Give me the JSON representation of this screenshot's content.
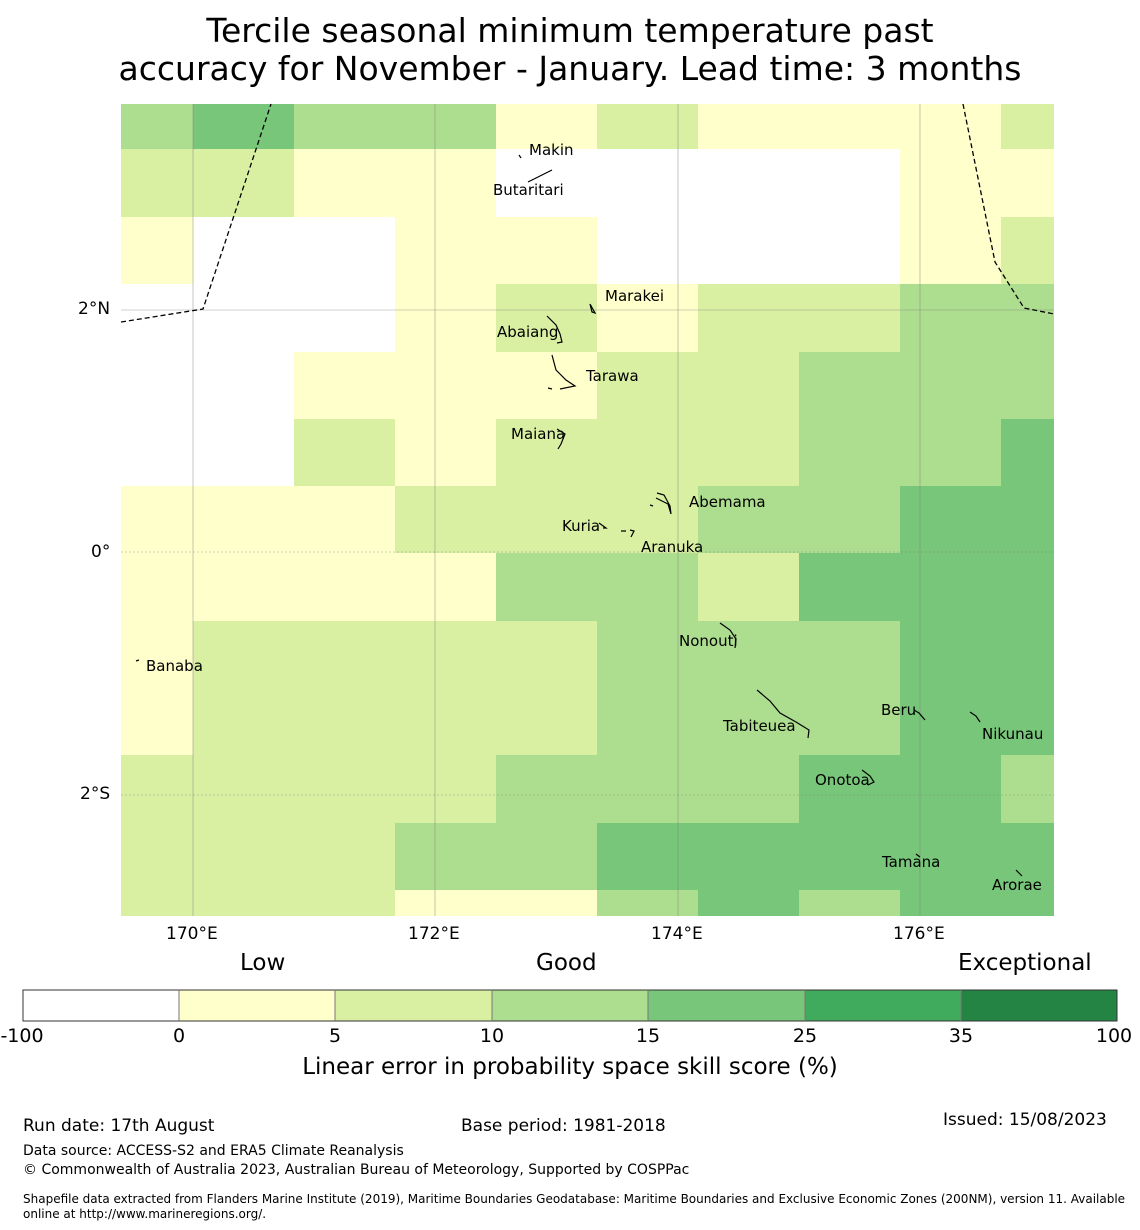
{
  "title_line1": "Tercile seasonal minimum temperature past",
  "title_line2": "accuracy for November - January. Lead time: 3 months",
  "axes": {
    "x_ticks": [
      "170°E",
      "172°E",
      "174°E",
      "176°E"
    ],
    "y_ticks": [
      "2°N",
      "0°",
      "2°S"
    ]
  },
  "islands": [
    {
      "name": "Makin"
    },
    {
      "name": "Butaritari"
    },
    {
      "name": "Marakei"
    },
    {
      "name": "Abaiang"
    },
    {
      "name": "Tarawa"
    },
    {
      "name": "Maiana"
    },
    {
      "name": "Abemama"
    },
    {
      "name": "Kuria"
    },
    {
      "name": "Aranuka"
    },
    {
      "name": "Nonouti"
    },
    {
      "name": "Banaba"
    },
    {
      "name": "Beru"
    },
    {
      "name": "Tabiteuea"
    },
    {
      "name": "Nikunau"
    },
    {
      "name": "Onotoa"
    },
    {
      "name": "Tamana"
    },
    {
      "name": "Arorae"
    }
  ],
  "legend": {
    "categories": [
      "Low",
      "Good",
      "Exceptional"
    ],
    "ticks": [
      "-100",
      "0",
      "5",
      "10",
      "15",
      "25",
      "35",
      "100"
    ],
    "colors": [
      "#ffffff",
      "#ffffcc",
      "#d9f0a3",
      "#addd8e",
      "#78c679",
      "#41ab5d",
      "#238443"
    ],
    "label": "Linear error in probability space skill score (%)"
  },
  "footer": {
    "run_date": "Run date: 17th August",
    "base_period": "Base period: 1981-2018",
    "issued": "Issued: 15/08/2023",
    "data_source": "Data source: ACCESS-S2 and ERA5 Climate Reanalysis",
    "copyright": "© Commonwealth of Australia 2023, Australian Bureau of Meteorology, Supported by COSPPac",
    "shapefile_line1": "Shapefile data extracted from Flanders Marine Institute (2019), Maritime Boundaries Geodatabase: Maritime Boundaries and Exclusive Economic Zones (200NM), version 11. Available",
    "shapefile_line2": "online at http://www.marineregions.org/."
  }
}
